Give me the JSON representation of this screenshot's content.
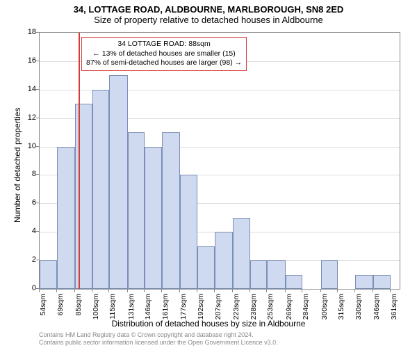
{
  "title": "34, LOTTAGE ROAD, ALDBOURNE, MARLBOROUGH, SN8 2ED",
  "subtitle": "Size of property relative to detached houses in Aldbourne",
  "y_axis_label": "Number of detached properties",
  "x_axis_label": "Distribution of detached houses by size in Aldbourne",
  "chart": {
    "type": "histogram",
    "xlim": [
      54,
      369
    ],
    "ylim": [
      0,
      18
    ],
    "ytick_step": 2,
    "yticks": [
      0,
      2,
      4,
      6,
      8,
      10,
      12,
      14,
      16,
      18
    ],
    "xticks": [
      54,
      69,
      85,
      100,
      115,
      131,
      146,
      161,
      177,
      192,
      207,
      223,
      238,
      253,
      269,
      284,
      300,
      315,
      330,
      346,
      361
    ],
    "xtick_suffix": "sqm",
    "bar_fill": "#cfd9ef",
    "bar_border": "#7b8fb5",
    "grid_color": "#dcdcdc",
    "background_color": "#ffffff",
    "marker_x": 88,
    "marker_color": "#d43b3b",
    "bars": [
      {
        "x0": 54,
        "x1": 69,
        "y": 2
      },
      {
        "x0": 69,
        "x1": 85,
        "y": 10
      },
      {
        "x0": 85,
        "x1": 100,
        "y": 13
      },
      {
        "x0": 100,
        "x1": 115,
        "y": 14
      },
      {
        "x0": 115,
        "x1": 131,
        "y": 15
      },
      {
        "x0": 131,
        "x1": 146,
        "y": 11
      },
      {
        "x0": 146,
        "x1": 161,
        "y": 10
      },
      {
        "x0": 161,
        "x1": 177,
        "y": 11
      },
      {
        "x0": 177,
        "x1": 192,
        "y": 8
      },
      {
        "x0": 192,
        "x1": 207,
        "y": 3
      },
      {
        "x0": 207,
        "x1": 223,
        "y": 4
      },
      {
        "x0": 223,
        "x1": 238,
        "y": 5
      },
      {
        "x0": 238,
        "x1": 253,
        "y": 2
      },
      {
        "x0": 253,
        "x1": 269,
        "y": 2
      },
      {
        "x0": 269,
        "x1": 284,
        "y": 1
      },
      {
        "x0": 284,
        "x1": 300,
        "y": 0
      },
      {
        "x0": 300,
        "x1": 315,
        "y": 2
      },
      {
        "x0": 315,
        "x1": 330,
        "y": 0
      },
      {
        "x0": 330,
        "x1": 346,
        "y": 1
      },
      {
        "x0": 346,
        "x1": 361,
        "y": 1
      },
      {
        "x0": 361,
        "x1": 369,
        "y": 0
      }
    ]
  },
  "annotation": {
    "line1": "34 LOTTAGE ROAD: 88sqm",
    "line2": "← 13% of detached houses are smaller (15)",
    "line3": "87% of semi-detached houses are larger (98) →"
  },
  "attribution": {
    "line1": "Contains HM Land Registry data © Crown copyright and database right 2024.",
    "line2": "Contains public sector information licensed under the Open Government Licence v3.0."
  }
}
